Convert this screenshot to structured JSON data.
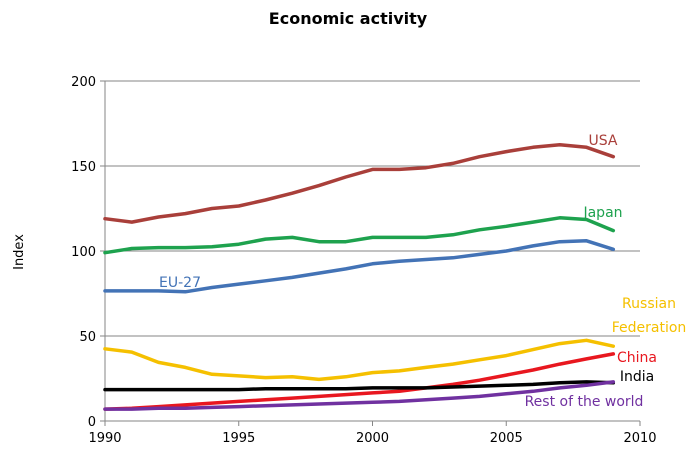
{
  "chart_data": {
    "type": "line",
    "title": "Economic activity",
    "xlabel": "",
    "ylabel": "Index",
    "xlim": [
      1990,
      2010
    ],
    "ylim": [
      0,
      200
    ],
    "x_ticks": [
      1990,
      1995,
      2000,
      2005,
      2010
    ],
    "y_ticks": [
      0,
      50,
      100,
      150,
      200
    ],
    "grid": "horizontal",
    "legend": "inline labels",
    "x": [
      1990,
      1991,
      1992,
      1993,
      1994,
      1995,
      1996,
      1997,
      1998,
      1999,
      2000,
      2001,
      2002,
      2003,
      2004,
      2005,
      2006,
      2007,
      2008,
      2009
    ],
    "series": [
      {
        "name": "USA",
        "color": "#a93f3a",
        "values": [
          119,
          117,
          120,
          122,
          125,
          126.5,
          130,
          134,
          138.5,
          143.5,
          148,
          148,
          149,
          151.5,
          155.5,
          158.5,
          161,
          162.5,
          161,
          155.5
        ]
      },
      {
        "name": "Japan",
        "color": "#1ea24e",
        "values": [
          99,
          101.5,
          102,
          102,
          102.5,
          104,
          107,
          108,
          105.5,
          105.5,
          108,
          108,
          108,
          109.5,
          112.5,
          114.5,
          117,
          119.5,
          118.5,
          112
        ]
      },
      {
        "name": "EU-27",
        "color": "#4373b6",
        "values": [
          76.5,
          76.5,
          76.5,
          76,
          78.5,
          80.5,
          82.5,
          84.5,
          87,
          89.5,
          92.5,
          94,
          95,
          96,
          98,
          100,
          103,
          105.5,
          106,
          101
        ]
      },
      {
        "name": "Russian Federation",
        "color": "#f5c000",
        "values": [
          42.5,
          40.5,
          34.5,
          31.5,
          27.5,
          26.5,
          25.5,
          26,
          24.5,
          26,
          28.5,
          29.5,
          31.5,
          33.5,
          36,
          38.5,
          42,
          45.5,
          47.5,
          44
        ]
      },
      {
        "name": "China",
        "color": "#e8171f",
        "values": [
          7,
          7.5,
          8.5,
          9.5,
          10.5,
          11.5,
          12.5,
          13.5,
          14.5,
          15.5,
          16.5,
          17.5,
          19.5,
          21.5,
          24,
          27,
          30,
          33.5,
          36.5,
          39.5
        ]
      },
      {
        "name": "India",
        "color": "#000000",
        "values": [
          18.5,
          18.5,
          18.5,
          18.5,
          18.5,
          18.5,
          19,
          19,
          19,
          19,
          19.5,
          19.5,
          19.5,
          20,
          20.5,
          21,
          21.5,
          22.5,
          23,
          22.5
        ]
      },
      {
        "name": "Rest of the world",
        "color": "#7031a0",
        "values": [
          7,
          7,
          7.5,
          7.5,
          8,
          8.5,
          9,
          9.5,
          10,
          10.5,
          11,
          11.5,
          12.5,
          13.5,
          14.5,
          16,
          17.5,
          19.5,
          21,
          23
        ]
      }
    ]
  }
}
